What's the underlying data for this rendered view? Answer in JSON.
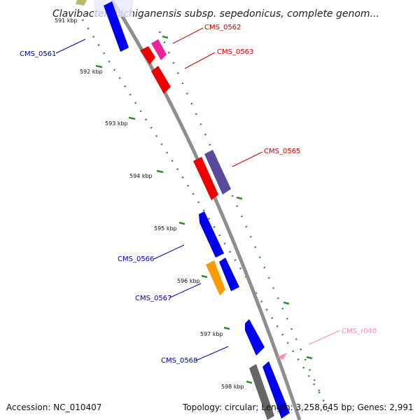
{
  "title": "Clavibacter michiganensis subsp. sepedonicus, complete genom...",
  "footer": {
    "accession": "Accession: NC_010407",
    "topology": "Topology: circular; Length: 3,258,645 bp; Genes: 2,991"
  },
  "tick_labels": [
    "591 kbp",
    "592 kbp",
    "593 kbp",
    "594 kbp",
    "595 kbp",
    "596 kbp",
    "597 kbp",
    "598 kbp"
  ],
  "gene_labels": [
    "CMS_0561",
    "CMS_0562",
    "CMS_0563",
    "CMS_0565",
    "CMS_0566",
    "CMS_0567",
    "CMS_0568",
    "CMS_r040"
  ],
  "colors": {
    "forward_label": "#cc0000",
    "reverse_label": "#0000aa",
    "rna_label": "#ff88bb",
    "backbone": "#888888",
    "ticks": "#2e8b2e",
    "forward_cds": "#ee0000",
    "reverse_cds": "#0000ee",
    "orange_cds": "#ff9900",
    "purple_cds": "#5a4a99",
    "magenta_cds": "#ee2299",
    "gray_cds": "#666666",
    "rna": "#ff88bb"
  }
}
